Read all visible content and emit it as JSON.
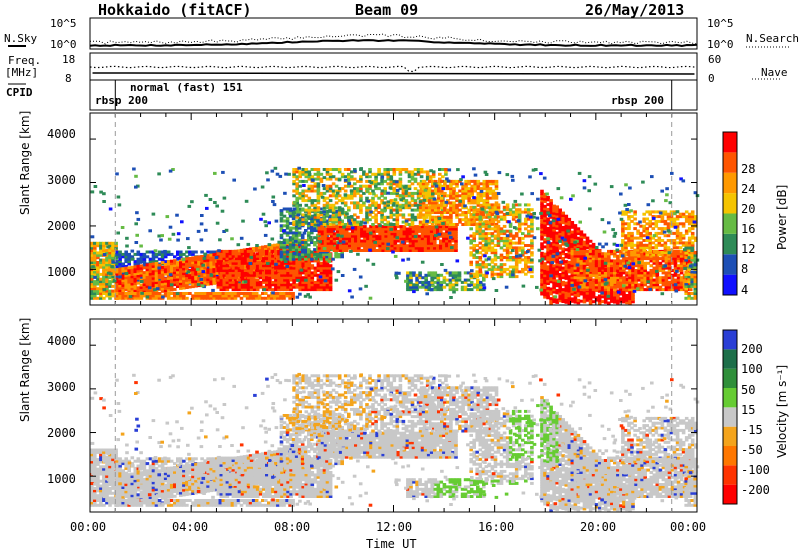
{
  "header": {
    "station": "Hokkaido (fitACF)",
    "beam": "Beam 09",
    "date": "26/May/2013"
  },
  "top_panels": {
    "nsky_label": "N.Sky",
    "nsearch_label": "N.Search",
    "freq_label_1": "Freq.",
    "freq_label_2": "[MHz]",
    "nave_label": "Nave",
    "cpid_label": "CPID",
    "noise_left_ticks": [
      "10^5",
      "10^0"
    ],
    "noise_right_ticks": [
      "10^5",
      "10^0"
    ],
    "freq_ticks": [
      "18",
      "8"
    ],
    "nave_ticks": [
      "60",
      "0"
    ],
    "cpid_segments": [
      "rbsp 200",
      "normal (fast) 151",
      "rbsp 200"
    ]
  },
  "colors": {
    "power_scale": [
      "#1010ff",
      "#1d4fb5",
      "#2e8b57",
      "#66bb44",
      "#f5c400",
      "#ff9900",
      "#ff5500",
      "#ff0000"
    ],
    "velocity_scale": [
      "#2a3fd6",
      "#1d6f4a",
      "#2f8f3a",
      "#66cc33",
      "#c8c8c8",
      "#f4a41c",
      "#ff7700",
      "#ff3300",
      "#ff0000"
    ]
  },
  "chart_data": [
    {
      "type": "heatmap",
      "title": "Power",
      "xlabel": "",
      "ylabel": "Slant Range [km]",
      "x_ticks": [
        "00:00",
        "04:00",
        "08:00",
        "12:00",
        "16:00",
        "20:00",
        "00:00"
      ],
      "y_ticks": [
        "1000",
        "2000",
        "3000",
        "4000"
      ],
      "ylim": [
        180,
        4600
      ],
      "colorbar_label": "Power [dB]",
      "colorbar_ticks": [
        "4",
        "8",
        "12",
        "16",
        "20",
        "24",
        "28"
      ],
      "colorbar_range": [
        0,
        32
      ]
    },
    {
      "type": "heatmap",
      "title": "Velocity",
      "xlabel": "Time UT",
      "ylabel": "Slant Range [km]",
      "x_ticks": [
        "00:00",
        "04:00",
        "08:00",
        "12:00",
        "16:00",
        "20:00",
        "00:00"
      ],
      "y_ticks": [
        "1000",
        "2000",
        "3000",
        "4000"
      ],
      "ylim": [
        180,
        4600
      ],
      "colorbar_label": "Velocity [m s⁻¹]",
      "colorbar_ticks": [
        "200",
        "100",
        "50",
        "15",
        "-15",
        "-50",
        "-100",
        "-200"
      ],
      "colorbar_range": [
        -250,
        250
      ]
    }
  ]
}
